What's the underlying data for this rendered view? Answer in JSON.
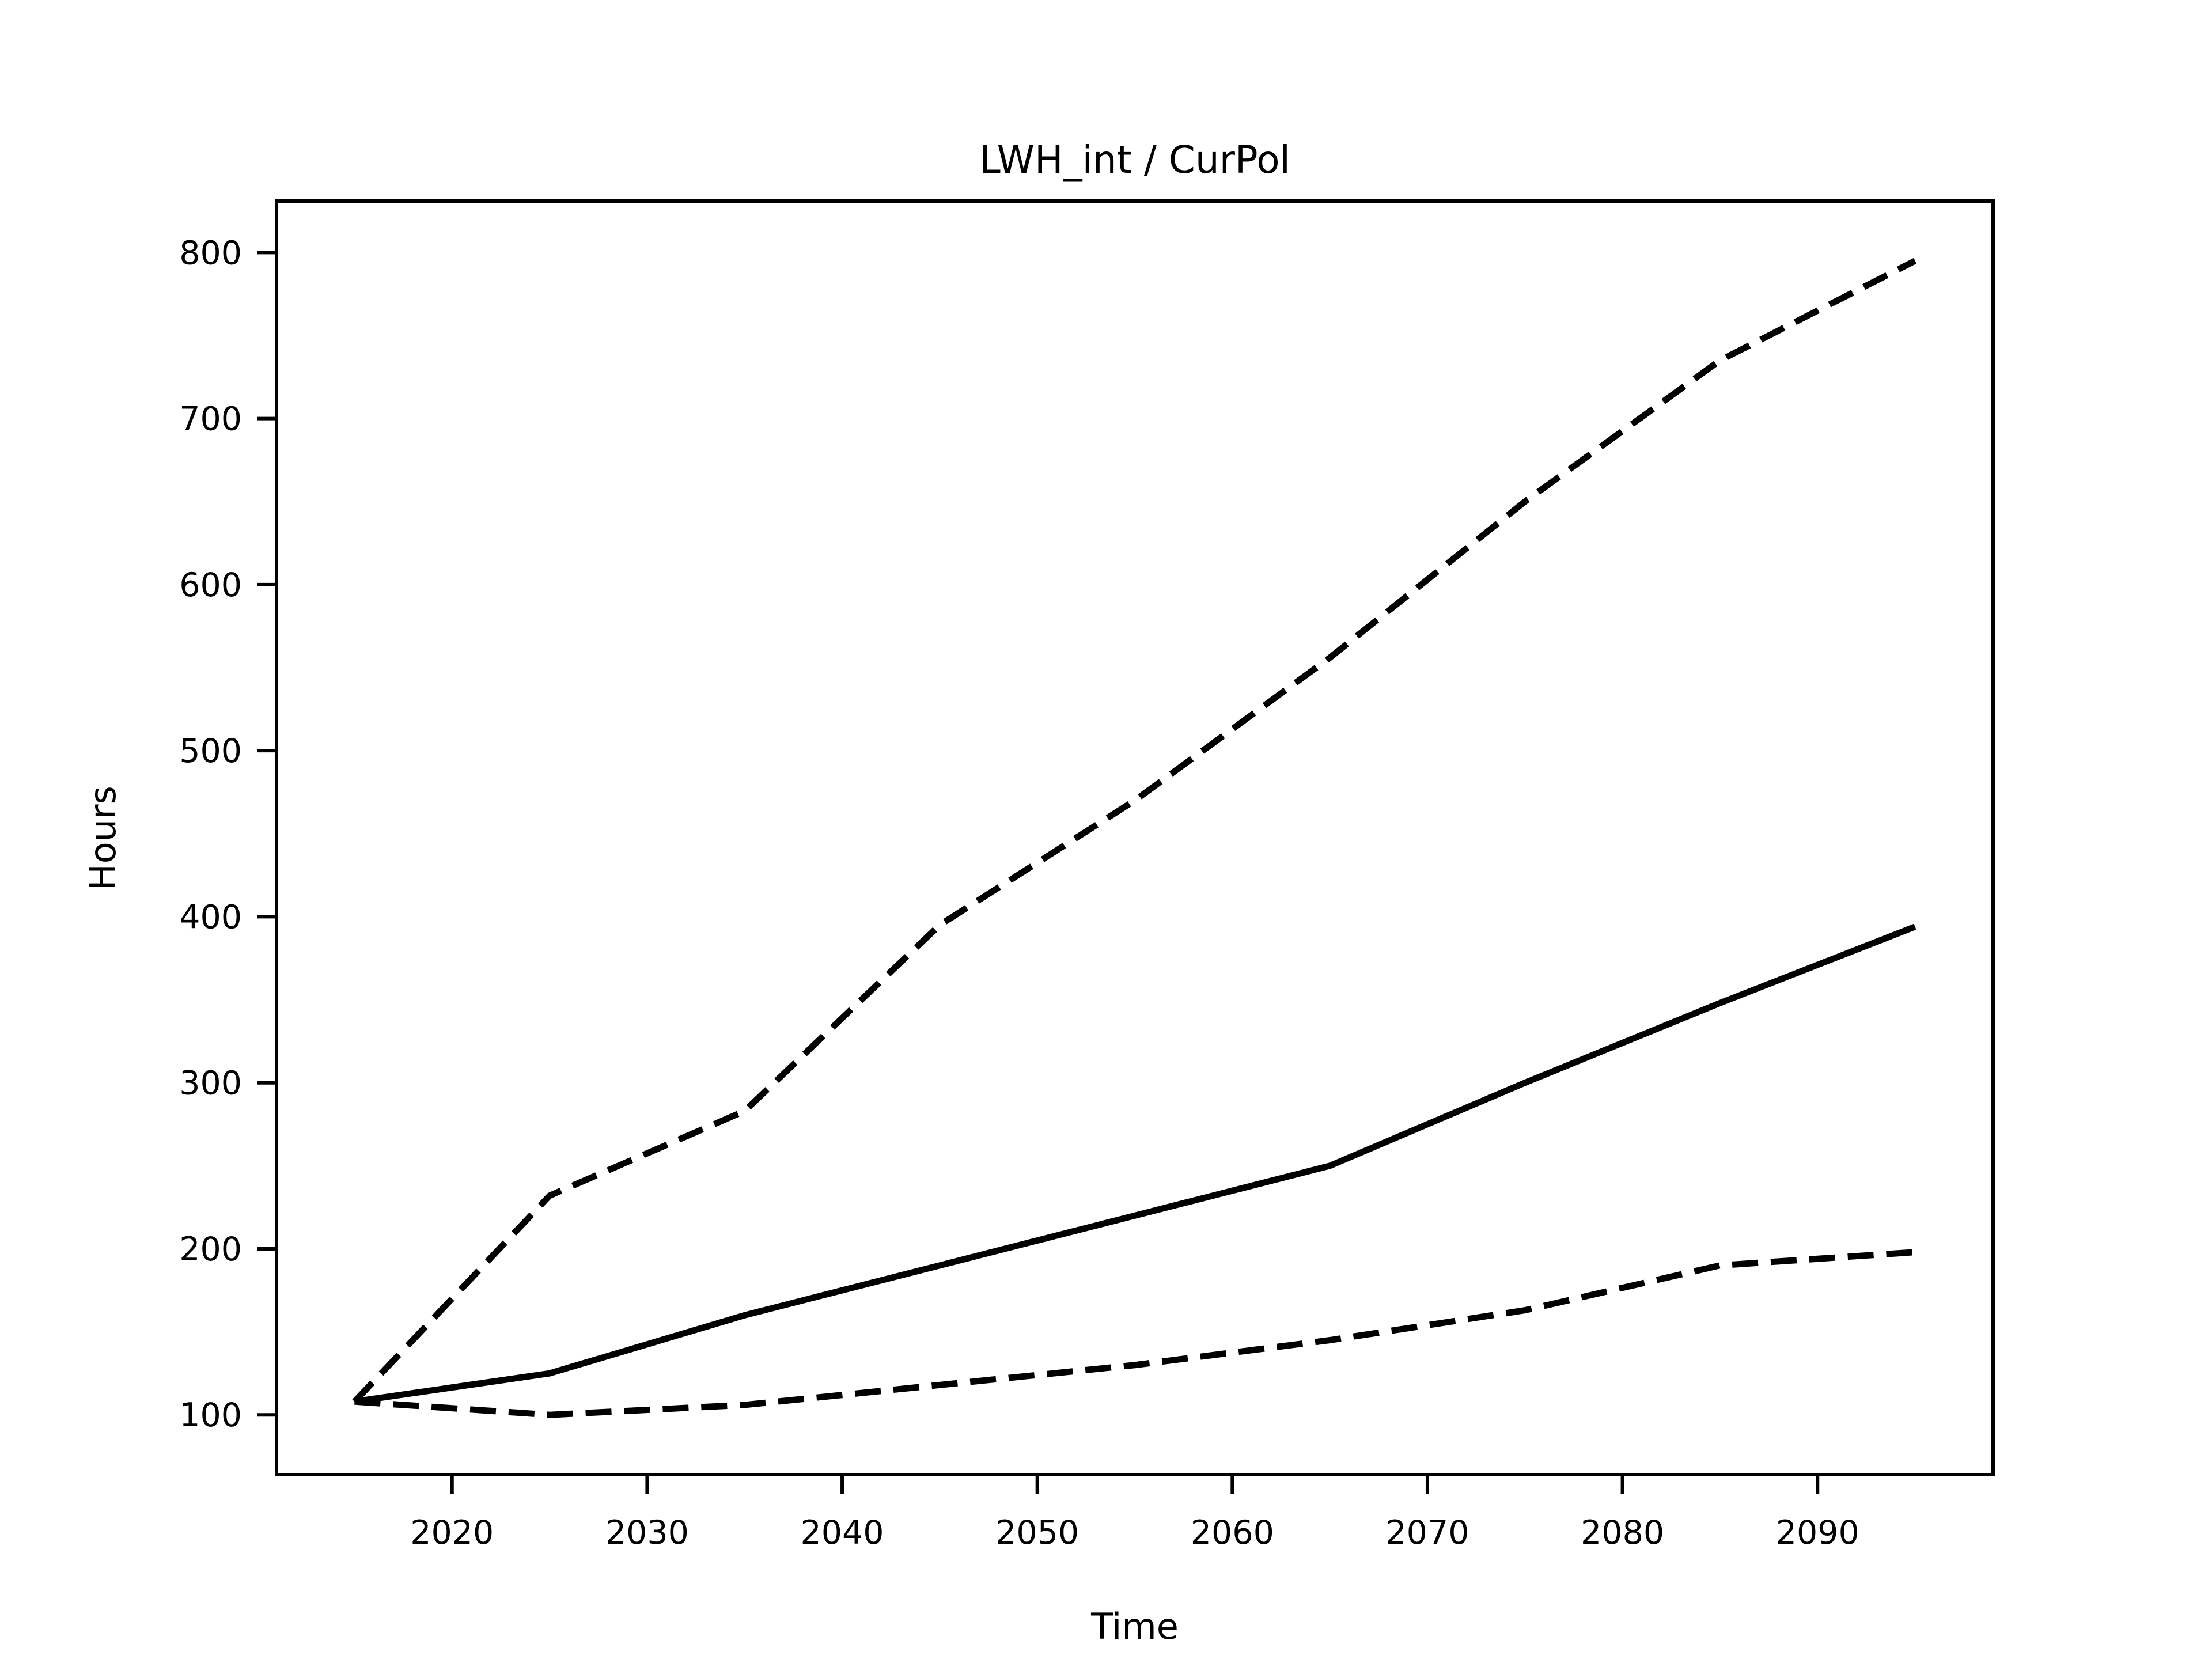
{
  "title": "LWH_int / CurPol",
  "axes": {
    "xlabel": "Time",
    "ylabel": "Hours"
  },
  "chart_data": {
    "type": "line",
    "title": "LWH_int / CurPol",
    "xlabel": "Time",
    "ylabel": "Hours",
    "x": [
      2015,
      2025,
      2035,
      2045,
      2055,
      2065,
      2075,
      2085,
      2095
    ],
    "series": [
      {
        "name": "upper-dashed-line",
        "style": "dashed",
        "color": "#000000",
        "values": [
          108,
          232,
          283,
          395,
          470,
          556,
          650,
          735,
          795
        ]
      },
      {
        "name": "solid-middle-line",
        "style": "solid",
        "color": "#000000",
        "values": [
          108,
          125,
          160,
          190,
          220,
          250,
          300,
          348,
          394
        ]
      },
      {
        "name": "lower-dashed-line",
        "style": "dashed",
        "color": "#000000",
        "values": [
          108,
          100,
          106,
          118,
          130,
          145,
          163,
          190,
          198
        ]
      }
    ],
    "xticks": [
      2020,
      2030,
      2040,
      2050,
      2060,
      2070,
      2080,
      2090
    ],
    "yticks": [
      100,
      200,
      300,
      400,
      500,
      600,
      700,
      800
    ],
    "xlim": [
      2011,
      2099
    ],
    "ylim": [
      64,
      831
    ],
    "grid": false,
    "legend": null,
    "line_color": "#000000",
    "background_color": "#ffffff"
  }
}
